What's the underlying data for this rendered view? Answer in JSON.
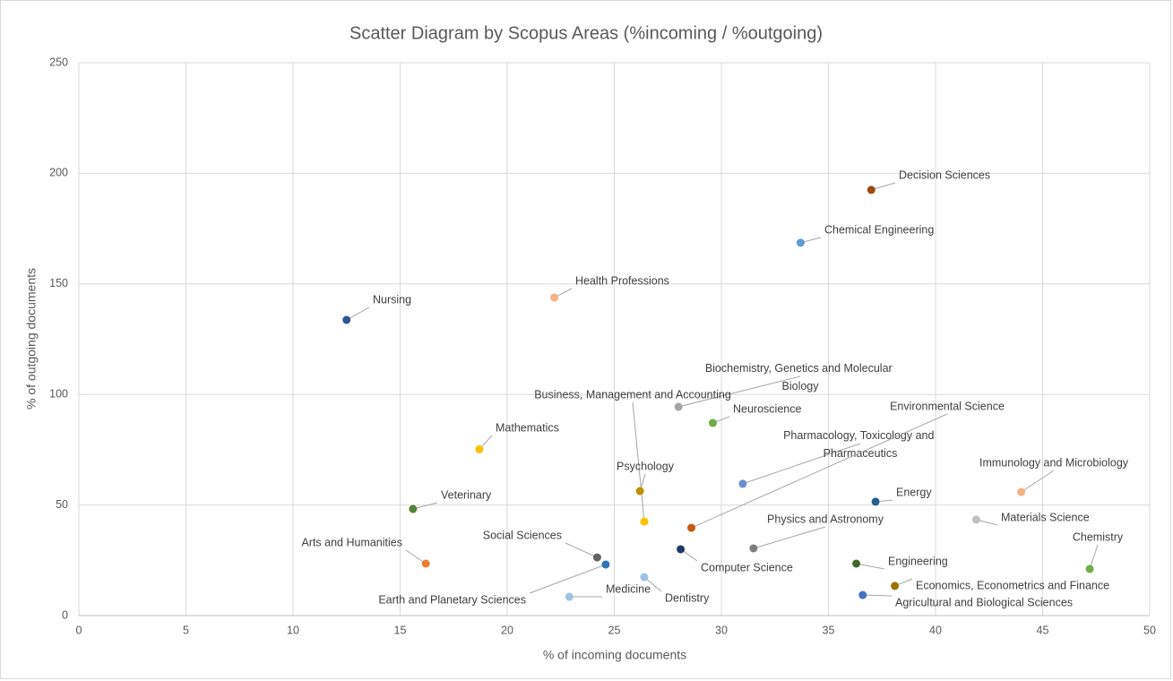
{
  "chart_data": {
    "type": "scatter",
    "title": "Scatter Diagram by Scopus Areas (%incoming / %outgoing)",
    "xlabel": "% of incoming documents",
    "ylabel": "% of outgoing documents",
    "xlim": [
      0,
      50
    ],
    "ylim": [
      0,
      250
    ],
    "xticks": [
      0,
      5,
      10,
      15,
      20,
      25,
      30,
      35,
      40,
      45,
      50
    ],
    "yticks": [
      0,
      50,
      100,
      150,
      200,
      250
    ],
    "grid": true,
    "series": [
      {
        "name": "Decision Sciences",
        "color": "#9e480e",
        "x": [
          37.0
        ],
        "values": [
          192.5
        ]
      },
      {
        "name": "Chemical Engineering",
        "color": "#5b9bd5",
        "x": [
          33.7
        ],
        "values": [
          168.6
        ]
      },
      {
        "name": "Health Professions",
        "color": "#f4b183",
        "x": [
          22.2
        ],
        "values": [
          143.8
        ]
      },
      {
        "name": "Nursing",
        "color": "#2f5597",
        "x": [
          12.5
        ],
        "values": [
          133.7
        ]
      },
      {
        "name": "Biochemistry, Genetics and Molecular Biology",
        "color": "#a5a5a5",
        "x": [
          28.0
        ],
        "values": [
          94.4
        ]
      },
      {
        "name": "Neuroscience",
        "color": "#70ad47",
        "x": [
          29.6
        ],
        "values": [
          87.1
        ]
      },
      {
        "name": "Business, Management and Accounting",
        "color": "#ffc000",
        "x": [
          26.4
        ],
        "values": [
          42.5
        ]
      },
      {
        "name": "Mathematics",
        "color": "#ffc000",
        "x": [
          18.7
        ],
        "values": [
          75.2
        ]
      },
      {
        "name": "Psychology",
        "color": "#bf8f00",
        "x": [
          26.2
        ],
        "values": [
          56.3
        ]
      },
      {
        "name": "Pharmacology, Toxicology and Pharmaceutics",
        "color": "#698ed0",
        "x": [
          31.0
        ],
        "values": [
          59.6
        ]
      },
      {
        "name": "Environmental Science",
        "color": "#c55a11",
        "x": [
          28.6
        ],
        "values": [
          39.7
        ]
      },
      {
        "name": "Veterinary",
        "color": "#548235",
        "x": [
          15.6
        ],
        "values": [
          48.2
        ]
      },
      {
        "name": "Immunology and Microbiology",
        "color": "#f4b183",
        "x": [
          44.0
        ],
        "values": [
          55.9
        ]
      },
      {
        "name": "Energy",
        "color": "#255e91",
        "x": [
          37.2
        ],
        "values": [
          51.5
        ]
      },
      {
        "name": "Materials Science",
        "color": "#bfbfbf",
        "x": [
          41.9
        ],
        "values": [
          43.4
        ]
      },
      {
        "name": "Physics and Astronomy",
        "color": "#7f7f7f",
        "x": [
          31.5
        ],
        "values": [
          30.4
        ]
      },
      {
        "name": "Computer Science",
        "color": "#203864",
        "x": [
          28.1
        ],
        "values": [
          30.0
        ]
      },
      {
        "name": "Social Sciences",
        "color": "#636363",
        "x": [
          24.2
        ],
        "values": [
          26.3
        ]
      },
      {
        "name": "Arts and Humanities",
        "color": "#ed7d31",
        "x": [
          16.2
        ],
        "values": [
          23.5
        ]
      },
      {
        "name": "Earth and Planetary Sciences",
        "color": "#2e75b6",
        "x": [
          24.6
        ],
        "values": [
          23.1
        ]
      },
      {
        "name": "Medicine",
        "color": "#9dc3e6",
        "x": [
          22.9
        ],
        "values": [
          8.5
        ]
      },
      {
        "name": "Dentistry",
        "color": "#9dc3e6",
        "x": [
          26.4
        ],
        "values": [
          17.4
        ]
      },
      {
        "name": "Engineering",
        "color": "#43682b",
        "x": [
          36.3
        ],
        "values": [
          23.5
        ]
      },
      {
        "name": "Chemistry",
        "color": "#70ad47",
        "x": [
          47.2
        ],
        "values": [
          21.1
        ]
      },
      {
        "name": "Economics, Econometrics and Finance",
        "color": "#997300",
        "x": [
          38.1
        ],
        "values": [
          13.4
        ]
      },
      {
        "name": "Agricultural and Biological Sciences",
        "color": "#4472c4",
        "x": [
          36.6
        ],
        "values": [
          9.3
        ]
      }
    ]
  }
}
